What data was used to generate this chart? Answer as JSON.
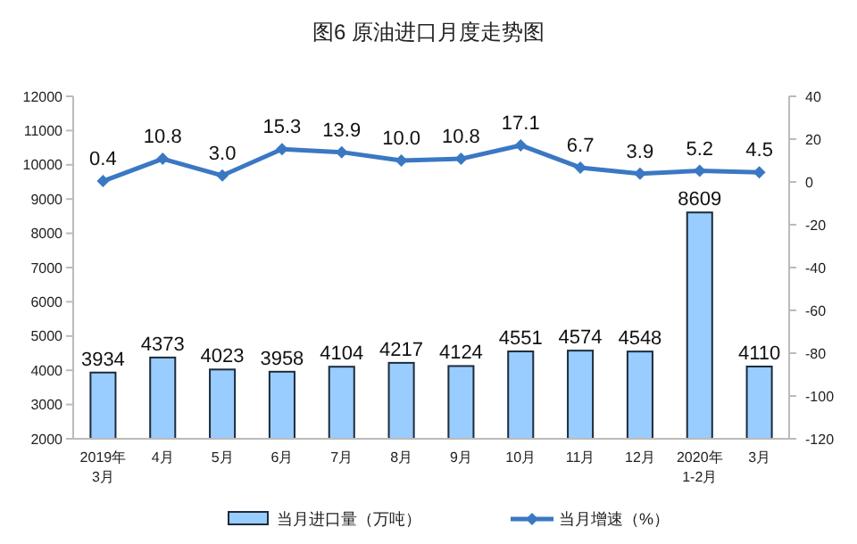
{
  "chart_data": {
    "type": "bar",
    "title": "图6  原油进口月度走势图",
    "categories": [
      "2019年\n3月",
      "4月",
      "5月",
      "6月",
      "7月",
      "8月",
      "9月",
      "10月",
      "11月",
      "12月",
      "2020年\n1-2月",
      "3月"
    ],
    "series": [
      {
        "name": "当月进口量（万吨）",
        "color": "#99ccff",
        "values": [
          3934,
          4373,
          4023,
          3958,
          4104,
          4217,
          4124,
          4551,
          4574,
          4548,
          8609,
          4110
        ]
      },
      {
        "name": "当月增速（%）",
        "type": "line",
        "axis": "y2",
        "color": "#3a78c3",
        "marker": "diamond",
        "values": [
          0.4,
          10.8,
          3.0,
          15.3,
          13.9,
          10.0,
          10.8,
          17.1,
          6.7,
          3.9,
          5.2,
          4.5
        ],
        "value_labels": [
          "0.4",
          "10.8",
          "3.0",
          "15.3",
          "13.9",
          "10.0",
          "10.8",
          "17.1",
          "6.7",
          "3.9",
          "5.2",
          "4.5"
        ]
      }
    ],
    "ylim": [
      2000,
      12000
    ],
    "yticks": [
      2000,
      3000,
      4000,
      5000,
      6000,
      7000,
      8000,
      9000,
      10000,
      11000,
      12000
    ],
    "y2lim": [
      -120,
      40
    ],
    "y2ticks": [
      -120,
      -100,
      -80,
      -60,
      -40,
      -20,
      0,
      20,
      40
    ],
    "data_labels": true,
    "grid": false,
    "legend": "bottom"
  }
}
